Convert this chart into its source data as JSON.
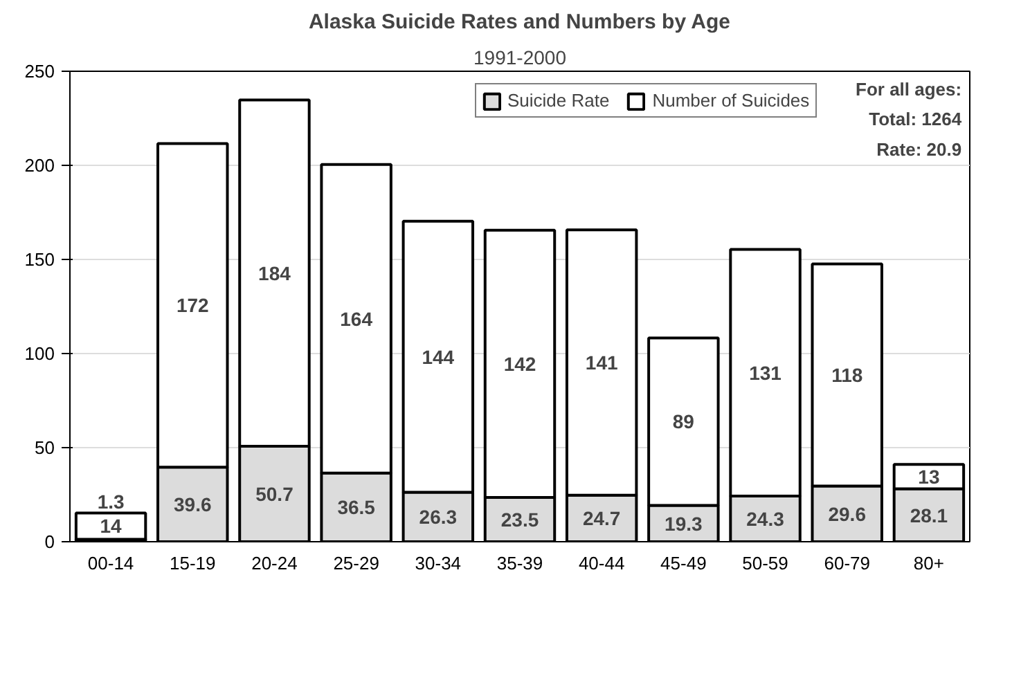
{
  "chart_data": {
    "type": "bar",
    "title": "Alaska Suicide Rates and Numbers by Age",
    "subtitle": "1991-2000",
    "categories": [
      "00-14",
      "15-19",
      "20-24",
      "25-29",
      "30-34",
      "35-39",
      "40-44",
      "45-49",
      "50-59",
      "60-79",
      "80+"
    ],
    "stacked": true,
    "series": [
      {
        "name": "Suicide Rate",
        "color": "#dcdcdc",
        "values": [
          1.3,
          39.6,
          50.7,
          36.5,
          26.3,
          23.5,
          24.7,
          19.3,
          24.3,
          29.6,
          28.1
        ]
      },
      {
        "name": "Number of Suicides",
        "color": "#ffffff",
        "values": [
          14,
          172,
          184,
          164,
          144,
          142,
          141,
          89,
          131,
          118,
          13
        ]
      }
    ],
    "ylim": [
      0,
      250
    ],
    "yticks": [
      0,
      50,
      100,
      150,
      200,
      250
    ],
    "grid": "y",
    "legend": "top",
    "data_labels": true,
    "annotations": [
      "For all ages:\nTotal: 1264\nRate: 20.9"
    ]
  }
}
